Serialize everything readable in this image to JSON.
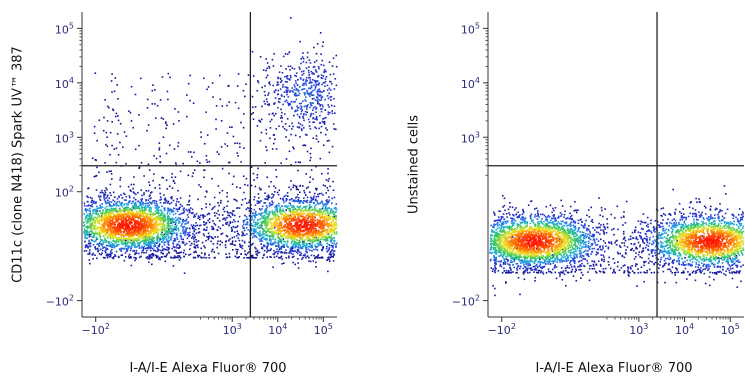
{
  "chart_data": [
    {
      "type": "scatter",
      "style": "flow cytometry pseudocolor density dot plot with quadrant gates",
      "xlabel": "I-A/I-E Alexa Fluor® 700",
      "ylabel": "CD11c (clone N418) Spark UV™ 387",
      "x_scale": "biexponential",
      "y_scale": "biexponential",
      "x_ticks": [
        "-10^2",
        "10^3",
        "10^4",
        "10^5"
      ],
      "y_ticks": [
        "-10^2",
        "10^2",
        "10^3",
        "10^4",
        "10^5"
      ],
      "gate": {
        "x": 2500,
        "y": 300
      },
      "populations": [
        {
          "name": "",
          "x_center": -30,
          "y_center": 40,
          "relative_density": 1.0
        },
        {
          "name": "",
          "x_center": 35000,
          "y_center": 40,
          "relative_density": 0.85
        },
        {
          "name": "",
          "x_center": 40000,
          "y_center": 6000,
          "relative_density": 0.2
        }
      ]
    },
    {
      "type": "scatter",
      "style": "flow cytometry pseudocolor density dot plot with quadrant gates",
      "xlabel": "I-A/I-E Alexa Fluor® 700",
      "ylabel": "Unstained cells",
      "x_scale": "biexponential",
      "y_scale": "biexponential",
      "x_ticks": [
        "-10^2",
        "10^3",
        "10^4",
        "10^5"
      ],
      "y_ticks": [
        "-10^2",
        "10^3",
        "10^4",
        "10^5"
      ],
      "gate": {
        "x": 2500,
        "y": 300
      },
      "populations": [
        {
          "name": "",
          "x_center": -30,
          "y_center": 10,
          "relative_density": 1.0
        },
        {
          "name": "",
          "x_center": 35000,
          "y_center": 10,
          "relative_density": 0.85
        }
      ]
    }
  ],
  "colors": {
    "low_density": "#1a1aa0",
    "mid_density": "#33cc66",
    "high_density": "#ff2a00",
    "gate_line": "#222222",
    "tick_text": "#2c2c7a"
  }
}
